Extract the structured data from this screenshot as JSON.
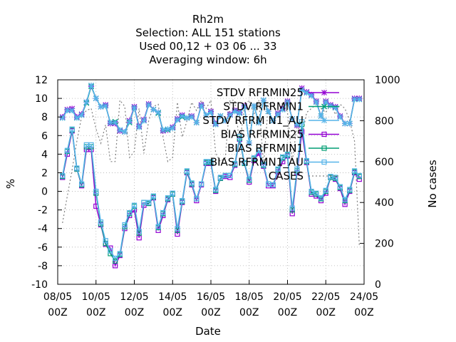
{
  "chart_data": {
    "type": "line",
    "title_lines": [
      "Rh2m",
      "Selection: ALL    151 stations",
      "Used  00,12  + 03 06 ... 33",
      "Averaging window:  6h"
    ],
    "xlabel": "Date",
    "ylabel": "%",
    "y2label": "No cases",
    "ylim": [
      -10,
      12
    ],
    "y2lim": [
      0,
      1000
    ],
    "grid": true,
    "legend_position": "top-right inside",
    "x_ticks": [
      {
        "line1": "08/05",
        "line2": "00Z",
        "t": 0
      },
      {
        "line1": "10/05",
        "line2": "00Z",
        "t": 48
      },
      {
        "line1": "12/05",
        "line2": "00Z",
        "t": 96
      },
      {
        "line1": "14/05",
        "line2": "00Z",
        "t": 144
      },
      {
        "line1": "16/05",
        "line2": "00Z",
        "t": 192
      },
      {
        "line1": "18/05",
        "line2": "00Z",
        "t": 240
      },
      {
        "line1": "20/05",
        "line2": "00Z",
        "t": 288
      },
      {
        "line1": "22/05",
        "line2": "00Z",
        "t": 336
      },
      {
        "line1": "24/05",
        "line2": "00Z",
        "t": 384
      }
    ],
    "y_ticks": [
      -10,
      -8,
      -6,
      -4,
      -2,
      0,
      2,
      4,
      6,
      8,
      10,
      12
    ],
    "y2_ticks": [
      0,
      200,
      400,
      600,
      800,
      1000
    ],
    "x_hours": [
      6,
      12,
      18,
      24,
      30,
      36,
      42,
      48,
      54,
      60,
      66,
      72,
      78,
      84,
      90,
      96,
      102,
      108,
      114,
      120,
      126,
      132,
      138,
      144,
      150,
      156,
      162,
      168,
      174,
      180,
      186,
      192,
      198,
      204,
      210,
      216,
      222,
      228,
      234,
      240,
      246,
      252,
      258,
      264,
      270,
      276,
      282,
      288,
      294,
      300,
      306,
      312,
      318,
      324,
      330,
      336,
      342,
      348,
      354,
      360,
      366,
      372,
      378
    ],
    "series": [
      {
        "name": "STDV RFRMIN25",
        "color": "#9400d3",
        "marker": "star",
        "axis": "y",
        "values": [
          8.0,
          8.8,
          8.9,
          8.0,
          8.3,
          9.6,
          11.3,
          10.0,
          9.1,
          9.3,
          7.3,
          7.3,
          6.5,
          6.4,
          7.6,
          9.1,
          7.0,
          7.7,
          9.4,
          8.8,
          8.5,
          6.5,
          6.6,
          6.9,
          7.8,
          8.2,
          7.9,
          8.1,
          7.4,
          9.3,
          8.2,
          8.6,
          7.3,
          8.1,
          7.6,
          8.3,
          8.7,
          8.5,
          9.2,
          5.2,
          9.2,
          7.4,
          9.8,
          8.6,
          7.6,
          8.4,
          8.9,
          9.7,
          7.8,
          7.1,
          11.1,
          10.7,
          10.4,
          9.7,
          8.1,
          9.7,
          9.3,
          9.1,
          8.1,
          7.3,
          7.3,
          10.0,
          10.0
        ]
      },
      {
        "name": "STDV RFRMIN1",
        "color": "#009e73",
        "marker": "cross",
        "axis": "y",
        "values": [
          7.9,
          8.7,
          8.7,
          7.9,
          8.2,
          9.5,
          11.3,
          10.0,
          9.1,
          9.2,
          7.4,
          7.5,
          6.6,
          6.4,
          7.4,
          9.0,
          6.9,
          7.6,
          9.3,
          8.8,
          8.4,
          6.6,
          6.6,
          6.8,
          7.7,
          8.0,
          7.9,
          8.0,
          7.4,
          9.2,
          8.2,
          8.5,
          7.2,
          8.1,
          7.6,
          8.2,
          8.6,
          8.4,
          9.1,
          5.2,
          9.2,
          7.4,
          9.8,
          8.6,
          7.6,
          8.3,
          8.8,
          9.6,
          7.8,
          7.2,
          10.9,
          10.6,
          10.3,
          9.6,
          8.1,
          9.6,
          9.2,
          9.0,
          8.0,
          7.3,
          7.3,
          9.9,
          9.9
        ]
      },
      {
        "name": "STDV RFRM N1_AU",
        "color": "#56b4e9",
        "marker": "star",
        "axis": "y",
        "values": [
          7.9,
          8.7,
          8.7,
          7.9,
          8.2,
          9.6,
          11.4,
          10.0,
          9.1,
          9.2,
          7.4,
          7.4,
          6.6,
          6.4,
          7.5,
          9.0,
          6.9,
          7.6,
          9.3,
          8.8,
          8.5,
          6.6,
          6.7,
          6.8,
          7.7,
          8.1,
          7.9,
          8.0,
          7.4,
          9.2,
          8.2,
          8.5,
          7.2,
          8.1,
          7.6,
          8.2,
          8.6,
          8.4,
          9.1,
          5.2,
          9.2,
          7.4,
          9.8,
          8.6,
          7.6,
          8.3,
          8.8,
          9.6,
          7.8,
          7.2,
          10.9,
          10.6,
          10.3,
          9.6,
          8.1,
          9.6,
          9.2,
          9.0,
          8.0,
          7.3,
          7.3,
          9.9,
          9.9
        ]
      },
      {
        "name": "BIAS RFRMIN25",
        "color": "#9400d3",
        "marker": "square",
        "axis": "y",
        "values": [
          1.5,
          4.0,
          6.5,
          2.4,
          0.6,
          4.5,
          4.5,
          -1.6,
          -3.6,
          -5.7,
          -6.1,
          -8.0,
          -6.9,
          -4.0,
          -2.6,
          -2.0,
          -5.0,
          -1.5,
          -1.3,
          -0.7,
          -4.2,
          -2.6,
          -0.9,
          -0.3,
          -4.6,
          -1.2,
          2.0,
          0.7,
          -1.0,
          0.7,
          3.0,
          3.0,
          0.0,
          1.4,
          1.6,
          1.5,
          2.8,
          5.6,
          3.0,
          1.0,
          3.3,
          4.1,
          2.7,
          0.6,
          0.6,
          2.1,
          3.2,
          3.8,
          -2.4,
          2.0,
          6.4,
          3.1,
          -0.3,
          -0.5,
          -1.0,
          -0.2,
          1.5,
          1.3,
          0.3,
          -1.4,
          0.0,
          2.0,
          1.3
        ]
      },
      {
        "name": "BIAS RFRMIN1",
        "color": "#009e73",
        "marker": "square",
        "axis": "y",
        "values": [
          1.6,
          4.3,
          6.6,
          2.4,
          0.7,
          4.8,
          4.8,
          -0.2,
          -3.5,
          -5.6,
          -6.7,
          -7.5,
          -6.8,
          -3.8,
          -2.4,
          -1.6,
          -4.5,
          -1.2,
          -1.3,
          -0.6,
          -3.9,
          -2.4,
          -0.8,
          -0.3,
          -4.2,
          -1.1,
          2.1,
          0.8,
          -0.8,
          0.8,
          3.1,
          3.1,
          0.1,
          1.4,
          1.7,
          1.7,
          2.9,
          5.7,
          3.0,
          1.2,
          3.5,
          4.4,
          2.8,
          0.8,
          0.7,
          2.3,
          3.6,
          3.9,
          -2.0,
          2.2,
          7.2,
          3.2,
          -0.1,
          -0.3,
          -0.8,
          0.0,
          1.5,
          1.4,
          0.4,
          -1.0,
          0.1,
          2.1,
          1.6
        ]
      },
      {
        "name": "BIAS RFRMN1_AU",
        "color": "#56b4e9",
        "marker": "square",
        "axis": "y",
        "values": [
          1.7,
          4.4,
          6.7,
          2.5,
          0.8,
          5.0,
          5.0,
          0.0,
          -3.3,
          -5.3,
          -6.4,
          -7.2,
          -6.7,
          -3.6,
          -2.3,
          -1.5,
          -4.3,
          -1.2,
          -1.2,
          -0.5,
          -3.8,
          -2.3,
          -0.7,
          -0.2,
          -4.0,
          -1.0,
          2.2,
          0.9,
          -0.8,
          0.8,
          3.2,
          3.2,
          0.2,
          1.5,
          1.7,
          1.7,
          3.0,
          5.9,
          3.1,
          1.3,
          3.6,
          4.4,
          2.9,
          0.8,
          0.7,
          2.4,
          3.7,
          4.0,
          -1.8,
          2.4,
          7.5,
          3.3,
          0.0,
          -0.2,
          -0.7,
          0.1,
          1.6,
          1.5,
          0.5,
          -0.9,
          0.2,
          2.2,
          1.7
        ]
      },
      {
        "name": "CASES",
        "color": "#808080",
        "marker": "none",
        "dash": true,
        "axis": "y2",
        "values": [
          300,
          430,
          560,
          700,
          820,
          850,
          860,
          760,
          690,
          780,
          600,
          600,
          900,
          870,
          620,
          650,
          860,
          640,
          800,
          870,
          880,
          720,
          600,
          620,
          890,
          720,
          800,
          890,
          850,
          900,
          860,
          900,
          640,
          600,
          620,
          900,
          900,
          680,
          870,
          900,
          830,
          900,
          580,
          880,
          890,
          830,
          890,
          840,
          600,
          780,
          720,
          840,
          860,
          880,
          860,
          840,
          880,
          830,
          880,
          860,
          800,
          700,
          190
        ]
      }
    ]
  }
}
